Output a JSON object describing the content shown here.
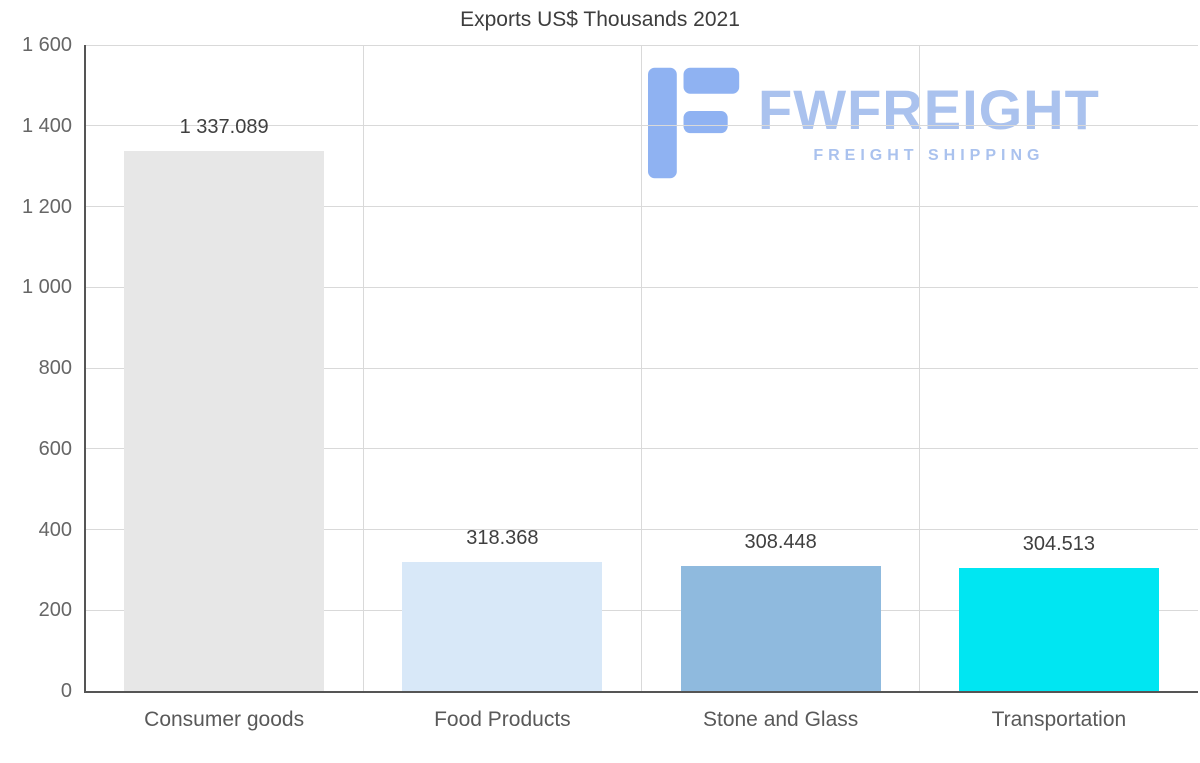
{
  "title": "Exports US$ Thousands 2021",
  "watermark": {
    "brand": "FWFREIGHT",
    "tagline": "FREIGHT SHIPPING"
  },
  "colors": {
    "background": "#ffffff",
    "axis": "#555555",
    "grid": "#d9d9d9",
    "title_text": "#3d3d3d",
    "tick_text": "#666666",
    "value_text": "#3f3f3f",
    "category_text": "#595959",
    "watermark_text": "#aac2ee",
    "watermark_glyph": "#8fb2f2"
  },
  "chart_data": {
    "type": "bar",
    "title": "Exports US$ Thousands 2021",
    "categories": [
      "Consumer goods",
      "Food Products",
      "Stone and Glass",
      "Transportation"
    ],
    "values": [
      1337.089,
      318.368,
      308.448,
      304.513
    ],
    "value_labels": [
      "1 337.089",
      "318.368",
      "308.448",
      "304.513"
    ],
    "bar_colors": [
      "#e7e7e7",
      "#d8e8f8",
      "#8fbade",
      "#00e6f2"
    ],
    "xlabel": "",
    "ylabel": "",
    "ylim": [
      0,
      1600
    ],
    "ytick_interval": 200,
    "ytick_labels": [
      "0",
      "200",
      "400",
      "600",
      "800",
      "1 000",
      "1 200",
      "1 400",
      "1 600"
    ],
    "grid": true,
    "legend": false
  }
}
